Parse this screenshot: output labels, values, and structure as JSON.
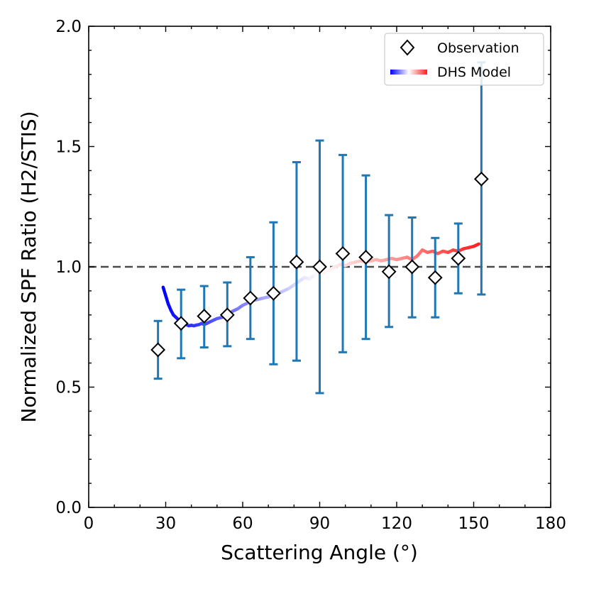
{
  "chart_data": {
    "type": "scatter",
    "xlabel": "Scattering Angle (°)",
    "ylabel": "Normalized SPF Ratio (H2/STIS)",
    "xlim": [
      0,
      180
    ],
    "ylim": [
      0,
      2.0
    ],
    "xticks": [
      0,
      30,
      60,
      90,
      120,
      150,
      180
    ],
    "xtick_labels": [
      "0",
      "30",
      "60",
      "90",
      "120",
      "150",
      "180"
    ],
    "yticks": [
      0.0,
      0.5,
      1.0,
      1.5,
      2.0
    ],
    "ytick_labels": [
      "0.0",
      "0.5",
      "1.0",
      "1.5",
      "2.0"
    ],
    "x_minor_step": 10,
    "y_minor_step": 0.1,
    "reference_line": {
      "y": 1.0,
      "style": "dashed",
      "color": "#4a4a4a"
    },
    "legend": {
      "placement": "top-right",
      "entries": [
        "Observation",
        "DHS Model"
      ]
    },
    "series": [
      {
        "name": "Observation",
        "marker": "diamond",
        "errorbar_color": "#1f77b4",
        "x": [
          27,
          36,
          45,
          54,
          63,
          72,
          81,
          90,
          99,
          108,
          117,
          126,
          135,
          144,
          153
        ],
        "y": [
          0.655,
          0.765,
          0.795,
          0.8,
          0.87,
          0.89,
          1.02,
          1.0,
          1.055,
          1.04,
          0.98,
          1.0,
          0.955,
          1.035,
          1.365
        ],
        "y_low": [
          0.535,
          0.62,
          0.665,
          0.67,
          0.7,
          0.595,
          0.61,
          0.475,
          0.645,
          0.7,
          0.75,
          0.79,
          0.79,
          0.89,
          0.885
        ],
        "y_high": [
          0.775,
          0.905,
          0.92,
          0.935,
          1.04,
          1.185,
          1.435,
          1.525,
          1.465,
          1.38,
          1.215,
          1.205,
          1.12,
          1.18,
          1.85
        ]
      },
      {
        "name": "DHS Model",
        "style": "line",
        "colormap": [
          "#0000ff",
          "#ffffff",
          "#ff2020"
        ],
        "x": [
          29,
          30,
          31,
          32,
          33,
          34,
          35,
          36,
          37,
          38,
          39,
          40,
          41,
          42,
          43,
          44,
          45,
          46,
          47,
          48,
          49,
          50,
          52,
          54,
          56,
          58,
          60,
          62,
          64,
          66,
          68,
          70,
          72,
          74,
          76,
          78,
          80,
          82,
          84,
          86,
          88,
          90,
          92,
          94,
          96,
          98,
          100,
          102,
          104,
          106,
          108,
          110,
          112,
          114,
          116,
          118,
          120,
          122,
          124,
          126,
          128,
          130,
          132,
          134,
          136,
          138,
          140,
          142,
          144,
          146,
          148,
          150,
          152
        ],
        "y": [
          0.915,
          0.88,
          0.845,
          0.82,
          0.8,
          0.79,
          0.78,
          0.77,
          0.765,
          0.76,
          0.755,
          0.757,
          0.755,
          0.758,
          0.76,
          0.765,
          0.76,
          0.765,
          0.77,
          0.775,
          0.78,
          0.785,
          0.79,
          0.8,
          0.815,
          0.825,
          0.84,
          0.85,
          0.86,
          0.865,
          0.87,
          0.875,
          0.88,
          0.89,
          0.9,
          0.91,
          0.925,
          0.94,
          0.955,
          0.95,
          0.965,
          0.98,
          0.975,
          0.99,
          1.0,
          1.01,
          1.005,
          1.015,
          1.02,
          1.025,
          1.02,
          1.025,
          1.03,
          1.025,
          1.03,
          1.035,
          1.03,
          1.035,
          1.04,
          1.03,
          1.045,
          1.07,
          1.06,
          1.065,
          1.055,
          1.065,
          1.06,
          1.07,
          1.065,
          1.075,
          1.08,
          1.085,
          1.095
        ]
      }
    ]
  }
}
